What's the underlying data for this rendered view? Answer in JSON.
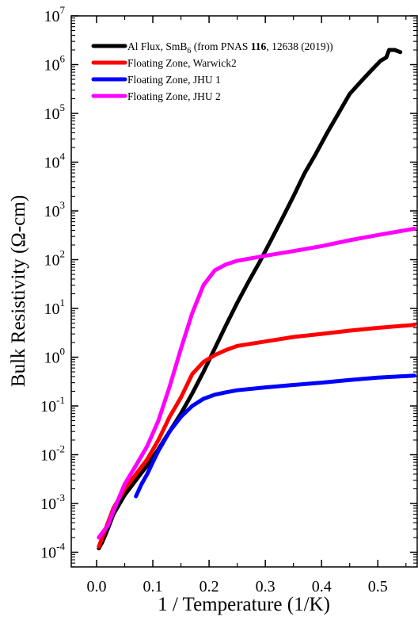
{
  "chart_data": {
    "type": "line",
    "xlabel": "1 / Temperature (1/K)",
    "ylabel": "Bulk Resistivity (Ω-cm)",
    "y_scale": "log",
    "xlim": [
      -0.045,
      0.57
    ],
    "ylim": [
      5e-05,
      10000000
    ],
    "x_ticks": [
      {
        "value": 0.0,
        "label": "0.0"
      },
      {
        "value": 0.1,
        "label": "0.1"
      },
      {
        "value": 0.2,
        "label": "0.2"
      },
      {
        "value": 0.3,
        "label": "0.3"
      },
      {
        "value": 0.4,
        "label": "0.4"
      },
      {
        "value": 0.5,
        "label": "0.5"
      }
    ],
    "y_ticks": [
      {
        "value": 0.0001,
        "base": "10",
        "exp": "-4"
      },
      {
        "value": 0.001,
        "base": "10",
        "exp": "-3"
      },
      {
        "value": 0.01,
        "base": "10",
        "exp": "-2"
      },
      {
        "value": 0.1,
        "base": "10",
        "exp": "-1"
      },
      {
        "value": 1,
        "base": "10",
        "exp": "0"
      },
      {
        "value": 10,
        "base": "10",
        "exp": "1"
      },
      {
        "value": 100,
        "base": "10",
        "exp": "2"
      },
      {
        "value": 1000,
        "base": "10",
        "exp": "3"
      },
      {
        "value": 10000,
        "base": "10",
        "exp": "4"
      },
      {
        "value": 100000,
        "base": "10",
        "exp": "5"
      },
      {
        "value": 1000000,
        "base": "10",
        "exp": "6"
      },
      {
        "value": 10000000,
        "base": "10",
        "exp": "7"
      }
    ],
    "grid": false,
    "legend_position": "top-left",
    "series": [
      {
        "name": "Al Flux, SmB6 (from PNAS 116, 12638 (2019))",
        "legend_parts": {
          "a": "Al Flux, SmB",
          "sub": "6",
          "b": " (from PNAS ",
          "bold": "116",
          "c": ", 12638 (2019))"
        },
        "color": "#000000",
        "points": [
          [
            0.004,
            0.00012
          ],
          [
            0.01,
            0.00016
          ],
          [
            0.02,
            0.0003
          ],
          [
            0.03,
            0.0006
          ],
          [
            0.05,
            0.0015
          ],
          [
            0.07,
            0.003
          ],
          [
            0.09,
            0.006
          ],
          [
            0.11,
            0.013
          ],
          [
            0.13,
            0.03
          ],
          [
            0.15,
            0.07
          ],
          [
            0.17,
            0.18
          ],
          [
            0.19,
            0.5
          ],
          [
            0.21,
            1.5
          ],
          [
            0.23,
            4.5
          ],
          [
            0.25,
            13
          ],
          [
            0.27,
            35
          ],
          [
            0.29,
            90
          ],
          [
            0.31,
            250
          ],
          [
            0.33,
            700
          ],
          [
            0.35,
            2000
          ],
          [
            0.37,
            6000
          ],
          [
            0.39,
            15000
          ],
          [
            0.41,
            40000
          ],
          [
            0.43,
            100000
          ],
          [
            0.45,
            250000
          ],
          [
            0.47,
            450000
          ],
          [
            0.49,
            800000
          ],
          [
            0.505,
            1200000
          ],
          [
            0.515,
            1400000
          ],
          [
            0.52,
            2000000
          ],
          [
            0.53,
            2000000
          ],
          [
            0.54,
            1800000
          ]
        ]
      },
      {
        "name": "Floating Zone, Warwick2",
        "color": "#ff0000",
        "points": [
          [
            0.004,
            0.00013
          ],
          [
            0.01,
            0.0002
          ],
          [
            0.02,
            0.0004
          ],
          [
            0.03,
            0.0008
          ],
          [
            0.05,
            0.002
          ],
          [
            0.07,
            0.004
          ],
          [
            0.09,
            0.008
          ],
          [
            0.11,
            0.02
          ],
          [
            0.13,
            0.06
          ],
          [
            0.15,
            0.15
          ],
          [
            0.17,
            0.45
          ],
          [
            0.19,
            0.8
          ],
          [
            0.21,
            1.1
          ],
          [
            0.23,
            1.4
          ],
          [
            0.25,
            1.7
          ],
          [
            0.3,
            2.1
          ],
          [
            0.35,
            2.6
          ],
          [
            0.4,
            3.0
          ],
          [
            0.45,
            3.5
          ],
          [
            0.5,
            4.0
          ],
          [
            0.565,
            4.6
          ]
        ]
      },
      {
        "name": "Floating Zone, JHU 1",
        "color": "#0000ff",
        "points": [
          [
            0.07,
            0.0014
          ],
          [
            0.08,
            0.0025
          ],
          [
            0.09,
            0.004
          ],
          [
            0.1,
            0.007
          ],
          [
            0.11,
            0.012
          ],
          [
            0.13,
            0.03
          ],
          [
            0.15,
            0.06
          ],
          [
            0.17,
            0.1
          ],
          [
            0.19,
            0.14
          ],
          [
            0.21,
            0.17
          ],
          [
            0.23,
            0.19
          ],
          [
            0.25,
            0.21
          ],
          [
            0.3,
            0.24
          ],
          [
            0.35,
            0.27
          ],
          [
            0.4,
            0.3
          ],
          [
            0.45,
            0.34
          ],
          [
            0.5,
            0.38
          ],
          [
            0.565,
            0.42
          ]
        ]
      },
      {
        "name": "Floating Zone, JHU 2",
        "color": "#ff00ff",
        "points": [
          [
            0.004,
            0.0002
          ],
          [
            0.01,
            0.00025
          ],
          [
            0.02,
            0.00035
          ],
          [
            0.03,
            0.0007
          ],
          [
            0.05,
            0.0025
          ],
          [
            0.07,
            0.006
          ],
          [
            0.09,
            0.015
          ],
          [
            0.11,
            0.05
          ],
          [
            0.13,
            0.25
          ],
          [
            0.15,
            1.5
          ],
          [
            0.17,
            8
          ],
          [
            0.19,
            30
          ],
          [
            0.21,
            60
          ],
          [
            0.23,
            80
          ],
          [
            0.25,
            95
          ],
          [
            0.3,
            120
          ],
          [
            0.35,
            150
          ],
          [
            0.4,
            190
          ],
          [
            0.45,
            250
          ],
          [
            0.5,
            320
          ],
          [
            0.565,
            430
          ]
        ]
      }
    ]
  }
}
